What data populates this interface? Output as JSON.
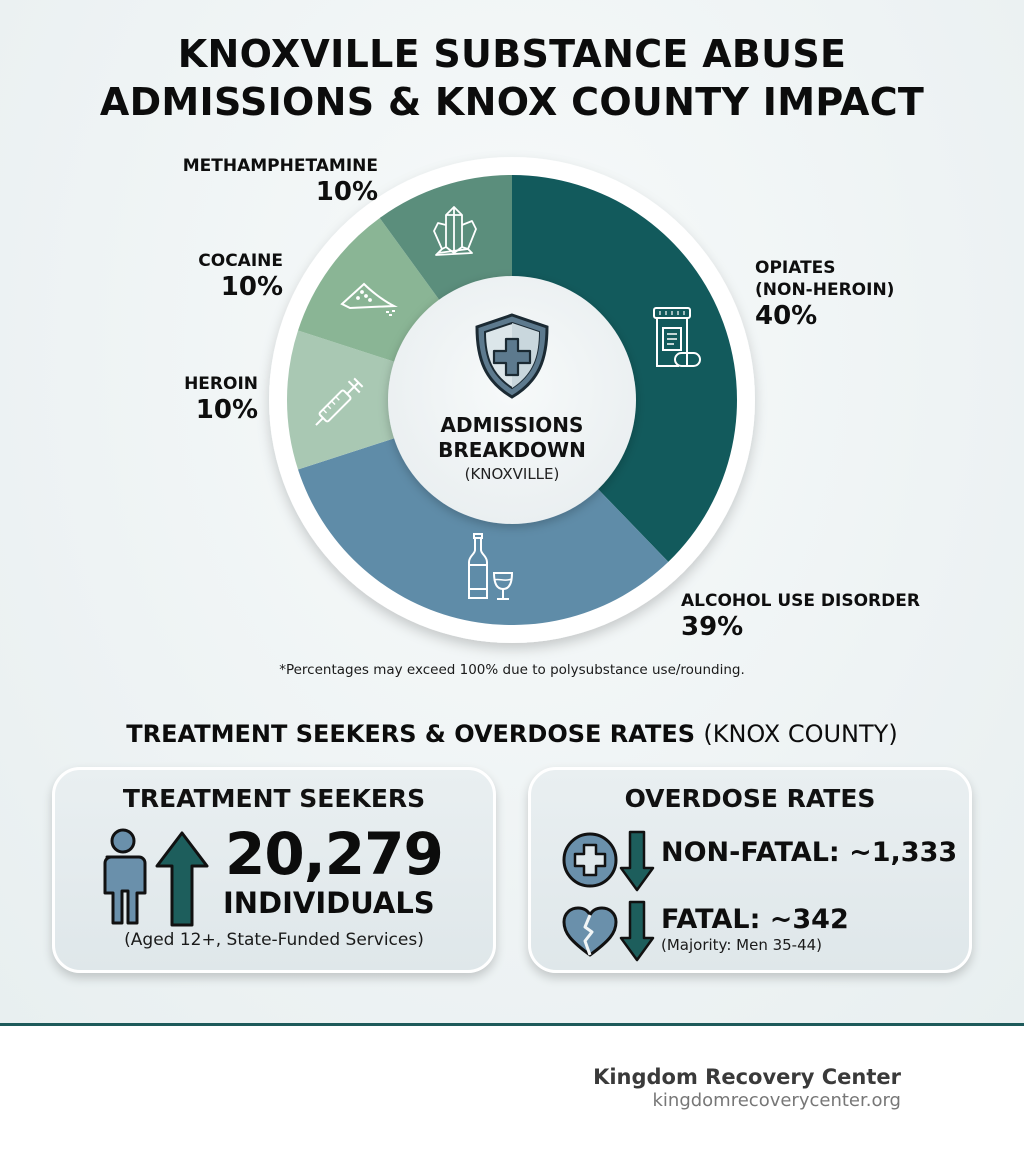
{
  "header": {
    "title_line1": "KNOXVILLE SUBSTANCE ABUSE",
    "title_line2": "ADMISSIONS & KNOX COUNTY IMPACT"
  },
  "donut": {
    "center_title_line1": "ADMISSIONS",
    "center_title_line2": "BREAKDOWN",
    "center_subtitle": "(KNOXVILLE)",
    "center_icon": "shield-plus-icon",
    "footnote": "*Percentages may exceed 100% due to polysubstance use/rounding."
  },
  "chart_data": {
    "type": "pie",
    "variant": "donut",
    "title": "ADMISSIONS BREAKDOWN (KNOXVILLE)",
    "categories": [
      "OPIATES (NON-HEROIN)",
      "ALCOHOL USE DISORDER",
      "HEROIN",
      "COCAINE",
      "METHAMPHETAMINE"
    ],
    "values": [
      40,
      39,
      10,
      10,
      10
    ],
    "unit": "%",
    "note": "*Percentages may exceed 100% due to polysubstance use/rounding.",
    "segments": [
      {
        "name": "OPIATES (NON-HEROIN)",
        "label_line1": "OPIATES",
        "label_line2": "(NON-HEROIN)",
        "value": 40,
        "pct_label": "40%",
        "color": "#125a5c",
        "start_deg": 0,
        "end_deg": 136,
        "icon": "pill-bottle-icon"
      },
      {
        "name": "ALCOHOL USE DISORDER",
        "label_line1": "ALCOHOL USE DISORDER",
        "value": 39,
        "pct_label": "39%",
        "color": "#5f8ca8",
        "start_deg": 136,
        "end_deg": 252,
        "icon": "wine-bottle-glass-icon"
      },
      {
        "name": "HEROIN",
        "label_line1": "HEROIN",
        "value": 10,
        "pct_label": "10%",
        "color": "#a9c8b3",
        "start_deg": 252,
        "end_deg": 288,
        "icon": "syringe-icon"
      },
      {
        "name": "COCAINE",
        "label_line1": "COCAINE",
        "value": 10,
        "pct_label": "10%",
        "color": "#8ab595",
        "start_deg": 288,
        "end_deg": 324,
        "icon": "powder-pile-icon"
      },
      {
        "name": "METHAMPHETAMINE",
        "label_line1": "METHAMPHETAMINE",
        "value": 10,
        "pct_label": "10%",
        "color": "#5b8e7c",
        "start_deg": 324,
        "end_deg": 360,
        "icon": "crystal-icon"
      }
    ],
    "legend_position": "labels around ring"
  },
  "section": {
    "heading_bold": "TREATMENT SEEKERS & OVERDOSE RATES",
    "heading_light": "(KNOX COUNTY)"
  },
  "treatment_card": {
    "title": "TREATMENT SEEKERS",
    "value": "20,279",
    "unit": "INDIVIDUALS",
    "caption": "(Aged 12+, State-Funded Services)",
    "icons": [
      "person-icon",
      "arrow-up-icon"
    ]
  },
  "overdose_card": {
    "title": "OVERDOSE RATES",
    "rows": [
      {
        "label": "NON-FATAL: ~1,333",
        "icon": "medical-cross-circle-icon",
        "trend_icon": "arrow-down-icon"
      },
      {
        "label": "FATAL: ~342",
        "sub": "(Majority: Men 35-44)",
        "icon": "broken-heart-icon",
        "trend_icon": "arrow-down-icon"
      }
    ]
  },
  "footer": {
    "brand_name": "Kingdom Recovery Center",
    "brand_url": "kingdomrecoverycenter.org"
  },
  "colors": {
    "accent_dark_teal": "#125a5c",
    "steel_blue": "#5f8ca8",
    "card_bg": "#e4ebee",
    "footer_rule": "#1d5a5a"
  }
}
